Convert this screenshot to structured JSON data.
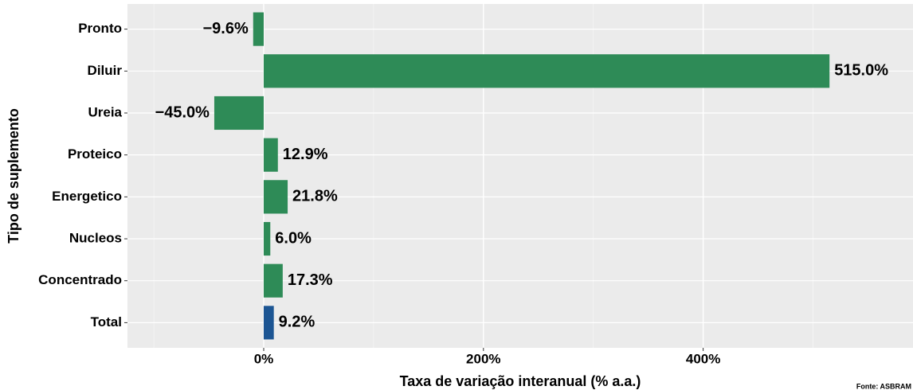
{
  "chart_data": {
    "type": "bar",
    "orientation": "horizontal",
    "x_label": "Taxa de variação interanual (% a.a.)",
    "y_label": "Tipo de suplemento",
    "caption": "Fonte: ASBRAM",
    "categories": [
      "Pronto",
      "Diluir",
      "Ureia",
      "Proteico",
      "Energetico",
      "Nucleos",
      "Concentrado",
      "Total"
    ],
    "values": [
      -9.6,
      515.0,
      -45.0,
      12.9,
      21.8,
      6.0,
      17.3,
      9.2
    ],
    "value_labels": [
      "−9.6%",
      "515.0%",
      "−45.0%",
      "12.9%",
      "21.8%",
      "6.0%",
      "17.3%",
      "9.2%"
    ],
    "colors": [
      "#2e8b57",
      "#2e8b57",
      "#2e8b57",
      "#2e8b57",
      "#2e8b57",
      "#2e8b57",
      "#2e8b57",
      "#1c5593"
    ],
    "xlim": [
      -124,
      591
    ],
    "xticks": [
      {
        "value": 0,
        "label": "0%"
      },
      {
        "value": 200,
        "label": "200%"
      },
      {
        "value": 400,
        "label": "400%"
      }
    ],
    "xminor": [
      -100,
      100,
      300,
      500
    ],
    "grid": true
  }
}
